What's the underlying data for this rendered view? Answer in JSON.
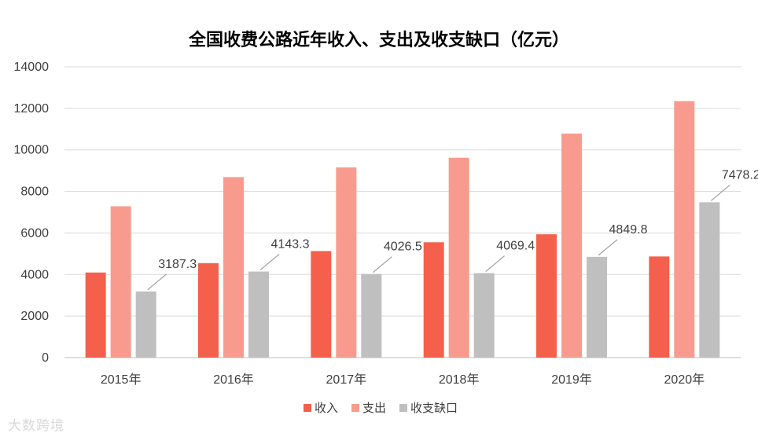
{
  "chart_data": {
    "type": "bar",
    "title": "全国收费公路近年收入、支出及收支缺口（亿元）",
    "categories": [
      "2015年",
      "2016年",
      "2017年",
      "2018年",
      "2019年",
      "2020年"
    ],
    "ylim": [
      0,
      14000
    ],
    "yticks": [
      0,
      2000,
      4000,
      6000,
      8000,
      10000,
      12000,
      14000
    ],
    "grid": true,
    "legend_position": "bottom",
    "series": [
      {
        "name": "收入",
        "color": "#f4604c",
        "values": [
          4097,
          4549,
          5131,
          5552,
          5937,
          4869
        ]
      },
      {
        "name": "支出",
        "color": "#f89b8e",
        "values": [
          7285,
          8692,
          9158,
          9622,
          10787,
          12347
        ]
      },
      {
        "name": "收支缺口",
        "color": "#bfbfbf",
        "values": [
          3187.3,
          4143.3,
          4026.5,
          4069.4,
          4849.8,
          7478.2
        ],
        "data_labels": [
          "3187.3",
          "4143.3",
          "4026.5",
          "4069.4",
          "4849.8",
          "7478.2"
        ]
      }
    ]
  },
  "watermark": "大数跨境"
}
